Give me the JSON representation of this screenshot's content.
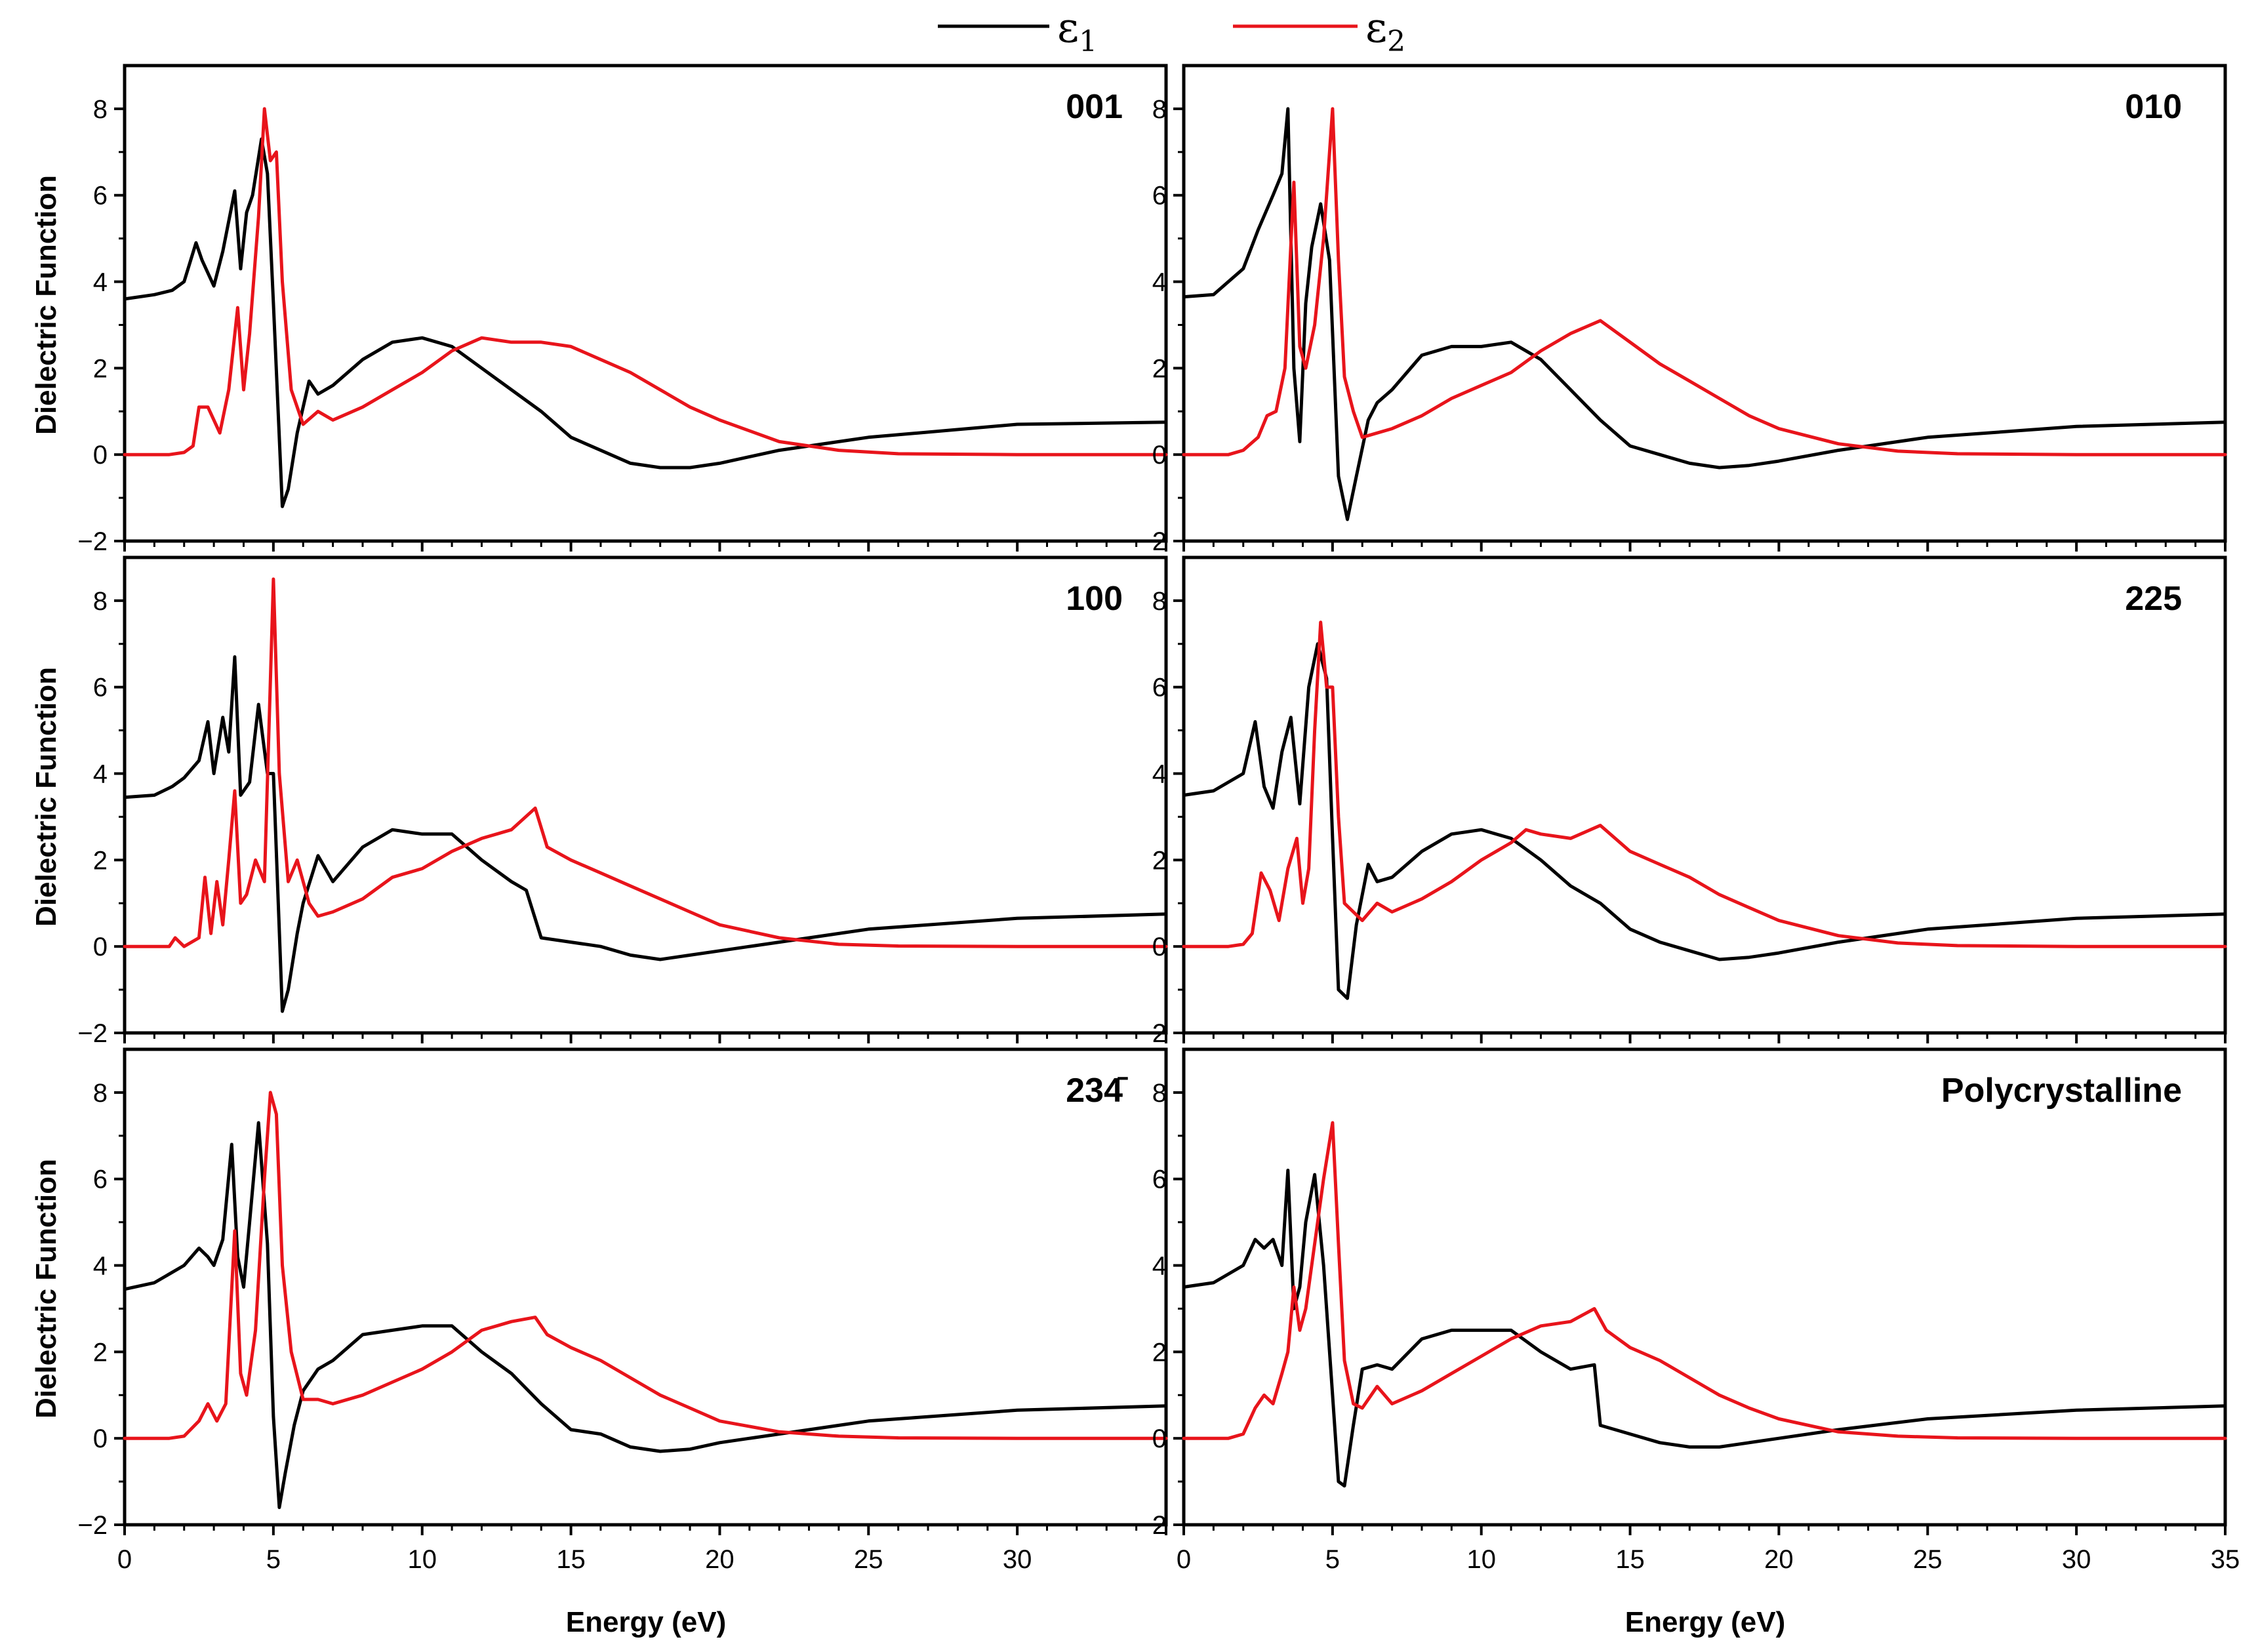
{
  "chart_data": {
    "type": "line",
    "legend": {
      "position": "top-center",
      "entries": [
        {
          "symbol": "ε",
          "subscript": "1",
          "color": "#000000"
        },
        {
          "symbol": "ε",
          "subscript": "2",
          "color": "#e8141b"
        }
      ]
    },
    "xlabel": "Energy (eV)",
    "ylabel": "Dielectric Function",
    "xlim": [
      0,
      35
    ],
    "ylim": [
      -2,
      9
    ],
    "xticks": [
      0,
      5,
      10,
      15,
      20,
      25,
      30,
      35
    ],
    "yticks": [
      -2,
      0,
      2,
      4,
      6,
      8
    ],
    "panels": [
      {
        "label": "001",
        "series": [
          {
            "name": "ε1",
            "color": "#000000",
            "x": [
              0,
              1,
              1.6,
              2,
              2.4,
              2.6,
              3,
              3.3,
              3.7,
              3.9,
              4.1,
              4.3,
              4.6,
              4.8,
              5.0,
              5.3,
              5.5,
              5.8,
              6.2,
              6.5,
              7,
              8,
              9,
              10,
              11,
              12,
              13,
              14,
              15,
              16,
              17,
              18,
              19,
              20,
              22,
              25,
              30,
              35
            ],
            "y": [
              3.6,
              3.7,
              3.8,
              4.0,
              4.9,
              4.5,
              3.9,
              4.7,
              6.1,
              4.3,
              5.6,
              6.0,
              7.3,
              6.5,
              3.5,
              -1.2,
              -0.8,
              0.5,
              1.7,
              1.4,
              1.6,
              2.2,
              2.6,
              2.7,
              2.5,
              2.0,
              1.5,
              1.0,
              0.4,
              0.1,
              -0.2,
              -0.3,
              -0.3,
              -0.2,
              0.1,
              0.4,
              0.7,
              0.75
            ]
          },
          {
            "name": "ε2",
            "color": "#e8141b",
            "x": [
              0,
              1.5,
              2,
              2.3,
              2.5,
              2.8,
              3.2,
              3.5,
              3.8,
              4.0,
              4.2,
              4.5,
              4.7,
              4.9,
              5.1,
              5.3,
              5.6,
              6.0,
              6.5,
              7,
              8,
              9,
              10,
              11,
              12,
              13,
              14,
              15,
              16,
              17,
              18,
              19,
              20,
              22,
              24,
              26,
              30,
              35
            ],
            "y": [
              0,
              0,
              0.05,
              0.2,
              1.1,
              1.1,
              0.5,
              1.5,
              3.4,
              1.5,
              2.8,
              5.5,
              8.0,
              6.8,
              7.0,
              4.0,
              1.5,
              0.7,
              1.0,
              0.8,
              1.1,
              1.5,
              1.9,
              2.4,
              2.7,
              2.6,
              2.6,
              2.5,
              2.2,
              1.9,
              1.5,
              1.1,
              0.8,
              0.3,
              0.1,
              0.02,
              0,
              0
            ]
          }
        ]
      },
      {
        "label": "010",
        "series": [
          {
            "name": "ε1",
            "color": "#000000",
            "x": [
              0,
              1,
              2,
              2.5,
              3,
              3.3,
              3.5,
              3.7,
              3.9,
              4.1,
              4.3,
              4.6,
              4.9,
              5.2,
              5.5,
              5.8,
              6.2,
              6.5,
              7,
              8,
              9,
              10,
              11,
              12,
              13,
              14,
              15,
              16,
              17,
              18,
              19,
              20,
              22,
              25,
              30,
              35
            ],
            "y": [
              3.65,
              3.7,
              4.3,
              5.2,
              6.0,
              6.5,
              8.0,
              2.0,
              0.3,
              3.5,
              4.8,
              5.8,
              4.5,
              -0.5,
              -1.5,
              -0.5,
              0.8,
              1.2,
              1.5,
              2.3,
              2.5,
              2.5,
              2.6,
              2.2,
              1.5,
              0.8,
              0.2,
              0.0,
              -0.2,
              -0.3,
              -0.25,
              -0.15,
              0.1,
              0.4,
              0.65,
              0.75
            ]
          },
          {
            "name": "ε2",
            "color": "#e8141b",
            "x": [
              0,
              1.5,
              2,
              2.5,
              2.8,
              3.1,
              3.4,
              3.7,
              3.9,
              4.1,
              4.4,
              4.7,
              5.0,
              5.2,
              5.4,
              5.7,
              6.0,
              7,
              8,
              9,
              10,
              11,
              12,
              13,
              14,
              15,
              16,
              17,
              18,
              19,
              20,
              22,
              24,
              26,
              30,
              35
            ],
            "y": [
              0,
              0,
              0.1,
              0.4,
              0.9,
              1.0,
              2.0,
              6.3,
              2.5,
              2.0,
              3.0,
              5.0,
              8.0,
              4.5,
              1.8,
              1.0,
              0.4,
              0.6,
              0.9,
              1.3,
              1.6,
              1.9,
              2.4,
              2.8,
              3.1,
              2.6,
              2.1,
              1.7,
              1.3,
              0.9,
              0.6,
              0.25,
              0.08,
              0.02,
              0,
              0
            ]
          }
        ]
      },
      {
        "label": "100",
        "series": [
          {
            "name": "ε1",
            "color": "#000000",
            "x": [
              0,
              1,
              1.6,
              2,
              2.5,
              2.8,
              3.0,
              3.3,
              3.5,
              3.7,
              3.9,
              4.2,
              4.5,
              4.8,
              5.0,
              5.3,
              5.5,
              5.8,
              6.0,
              6.5,
              7,
              8,
              9,
              10,
              11,
              12,
              13,
              13.5,
              14,
              15,
              16,
              17,
              18,
              19,
              20,
              22,
              25,
              30,
              35
            ],
            "y": [
              3.45,
              3.5,
              3.7,
              3.9,
              4.3,
              5.2,
              4.0,
              5.3,
              4.5,
              6.7,
              3.5,
              3.8,
              5.6,
              4.0,
              4.0,
              -1.5,
              -1.0,
              0.3,
              1.0,
              2.1,
              1.5,
              2.3,
              2.7,
              2.6,
              2.6,
              2.0,
              1.5,
              1.3,
              0.2,
              0.1,
              0.0,
              -0.2,
              -0.3,
              -0.2,
              -0.1,
              0.1,
              0.4,
              0.65,
              0.75
            ]
          },
          {
            "name": "ε2",
            "color": "#e8141b",
            "x": [
              0,
              1.5,
              1.7,
              2,
              2.5,
              2.7,
              2.9,
              3.1,
              3.3,
              3.5,
              3.7,
              3.9,
              4.1,
              4.4,
              4.7,
              5.0,
              5.2,
              5.5,
              5.8,
              6.2,
              6.5,
              7,
              8,
              9,
              10,
              11,
              12,
              13,
              13.8,
              14.2,
              15,
              16,
              17,
              18,
              19,
              20,
              22,
              24,
              26,
              30,
              35
            ],
            "y": [
              0,
              0,
              0.2,
              0,
              0.2,
              1.6,
              0.3,
              1.5,
              0.5,
              2.0,
              3.6,
              1.0,
              1.2,
              2.0,
              1.5,
              8.5,
              4.0,
              1.5,
              2.0,
              1.0,
              0.7,
              0.8,
              1.1,
              1.6,
              1.8,
              2.2,
              2.5,
              2.7,
              3.2,
              2.3,
              2.0,
              1.7,
              1.4,
              1.1,
              0.8,
              0.5,
              0.2,
              0.05,
              0.01,
              0,
              0
            ]
          }
        ]
      },
      {
        "label": "225",
        "series": [
          {
            "name": "ε1",
            "color": "#000000",
            "x": [
              0,
              1,
              2,
              2.4,
              2.7,
              3.0,
              3.3,
              3.6,
              3.9,
              4.2,
              4.5,
              4.8,
              5.0,
              5.2,
              5.5,
              5.8,
              6.2,
              6.5,
              7,
              8,
              9,
              10,
              11,
              12,
              13,
              14,
              15,
              16,
              17,
              18,
              19,
              20,
              22,
              25,
              30,
              35
            ],
            "y": [
              3.5,
              3.6,
              4.0,
              5.2,
              3.7,
              3.2,
              4.5,
              5.3,
              3.3,
              6.0,
              7.0,
              6.2,
              2.5,
              -1.0,
              -1.2,
              0.5,
              1.9,
              1.5,
              1.6,
              2.2,
              2.6,
              2.7,
              2.5,
              2.0,
              1.4,
              1.0,
              0.4,
              0.1,
              -0.1,
              -0.3,
              -0.25,
              -0.15,
              0.1,
              0.4,
              0.65,
              0.75
            ]
          },
          {
            "name": "ε2",
            "color": "#e8141b",
            "x": [
              0,
              1.5,
              2,
              2.3,
              2.6,
              2.9,
              3.2,
              3.5,
              3.8,
              4.0,
              4.2,
              4.4,
              4.6,
              4.8,
              5.0,
              5.2,
              5.4,
              5.7,
              6.0,
              6.5,
              7,
              8,
              9,
              10,
              11,
              11.5,
              12,
              13,
              14,
              15,
              16,
              17,
              18,
              19,
              20,
              22,
              24,
              26,
              30,
              35
            ],
            "y": [
              0,
              0,
              0.05,
              0.3,
              1.7,
              1.3,
              0.6,
              1.8,
              2.5,
              1.0,
              1.8,
              5.0,
              7.5,
              6.0,
              6.0,
              3.0,
              1.0,
              0.8,
              0.6,
              1.0,
              0.8,
              1.1,
              1.5,
              2.0,
              2.4,
              2.7,
              2.6,
              2.5,
              2.8,
              2.2,
              1.9,
              1.6,
              1.2,
              0.9,
              0.6,
              0.25,
              0.08,
              0.02,
              0,
              0
            ]
          }
        ]
      },
      {
        "label": "234̄",
        "series": [
          {
            "name": "ε1",
            "color": "#000000",
            "x": [
              0,
              1,
              2,
              2.5,
              2.8,
              3.0,
              3.3,
              3.6,
              3.8,
              4.0,
              4.2,
              4.5,
              4.8,
              5.0,
              5.2,
              5.4,
              5.7,
              6.0,
              6.5,
              7,
              8,
              9,
              10,
              11,
              12,
              13,
              14,
              15,
              16,
              17,
              18,
              19,
              20,
              22,
              25,
              30,
              35
            ],
            "y": [
              3.45,
              3.6,
              4.0,
              4.4,
              4.2,
              4.0,
              4.6,
              6.8,
              4.2,
              3.5,
              5.0,
              7.3,
              4.5,
              0.5,
              -1.6,
              -0.8,
              0.3,
              1.1,
              1.6,
              1.8,
              2.4,
              2.5,
              2.6,
              2.6,
              2.0,
              1.5,
              0.8,
              0.2,
              0.1,
              -0.2,
              -0.3,
              -0.25,
              -0.1,
              0.1,
              0.4,
              0.65,
              0.75
            ]
          },
          {
            "name": "ε2",
            "color": "#e8141b",
            "x": [
              0,
              1.5,
              2,
              2.5,
              2.8,
              3.1,
              3.4,
              3.7,
              3.9,
              4.1,
              4.4,
              4.7,
              4.9,
              5.1,
              5.3,
              5.6,
              6.0,
              6.5,
              7,
              8,
              9,
              10,
              11,
              12,
              13,
              13.8,
              14.2,
              15,
              16,
              17,
              18,
              19,
              20,
              22,
              24,
              26,
              30,
              35
            ],
            "y": [
              0,
              0,
              0.05,
              0.4,
              0.8,
              0.4,
              0.8,
              4.8,
              1.5,
              1.0,
              2.5,
              6.0,
              8.0,
              7.5,
              4.0,
              2.0,
              0.9,
              0.9,
              0.8,
              1.0,
              1.3,
              1.6,
              2.0,
              2.5,
              2.7,
              2.8,
              2.4,
              2.1,
              1.8,
              1.4,
              1.0,
              0.7,
              0.4,
              0.15,
              0.05,
              0.01,
              0,
              0
            ]
          }
        ]
      },
      {
        "label": "Polycrystalline",
        "series": [
          {
            "name": "ε1",
            "color": "#000000",
            "x": [
              0,
              1,
              2,
              2.4,
              2.7,
              3.0,
              3.3,
              3.5,
              3.7,
              3.9,
              4.1,
              4.4,
              4.7,
              5.0,
              5.2,
              5.4,
              5.7,
              6.0,
              6.5,
              7,
              8,
              9,
              10,
              11,
              12,
              13,
              13.8,
              14,
              15,
              16,
              17,
              18,
              19,
              20,
              22,
              25,
              30,
              35
            ],
            "y": [
              3.5,
              3.6,
              4.0,
              4.6,
              4.4,
              4.6,
              4.0,
              6.2,
              3.0,
              3.5,
              5.0,
              6.1,
              4.0,
              1.0,
              -1.0,
              -1.1,
              0.3,
              1.6,
              1.7,
              1.6,
              2.3,
              2.5,
              2.5,
              2.5,
              2.0,
              1.6,
              1.7,
              0.3,
              0.1,
              -0.1,
              -0.2,
              -0.2,
              -0.1,
              0.0,
              0.2,
              0.45,
              0.65,
              0.75
            ]
          },
          {
            "name": "ε2",
            "color": "#e8141b",
            "x": [
              0,
              1.5,
              2,
              2.4,
              2.7,
              3.0,
              3.3,
              3.5,
              3.7,
              3.9,
              4.1,
              4.4,
              4.7,
              5.0,
              5.2,
              5.4,
              5.7,
              6.0,
              6.5,
              7,
              8,
              9,
              10,
              11,
              12,
              13,
              13.8,
              14.2,
              15,
              16,
              17,
              18,
              19,
              20,
              22,
              24,
              26,
              30,
              35
            ],
            "y": [
              0,
              0,
              0.1,
              0.7,
              1.0,
              0.8,
              1.5,
              2.0,
              3.5,
              2.5,
              3.0,
              4.5,
              6.0,
              7.3,
              4.5,
              1.8,
              0.8,
              0.7,
              1.2,
              0.8,
              1.1,
              1.5,
              1.9,
              2.3,
              2.6,
              2.7,
              3.0,
              2.5,
              2.1,
              1.8,
              1.4,
              1.0,
              0.7,
              0.45,
              0.15,
              0.05,
              0.01,
              0,
              0
            ]
          }
        ]
      }
    ]
  }
}
